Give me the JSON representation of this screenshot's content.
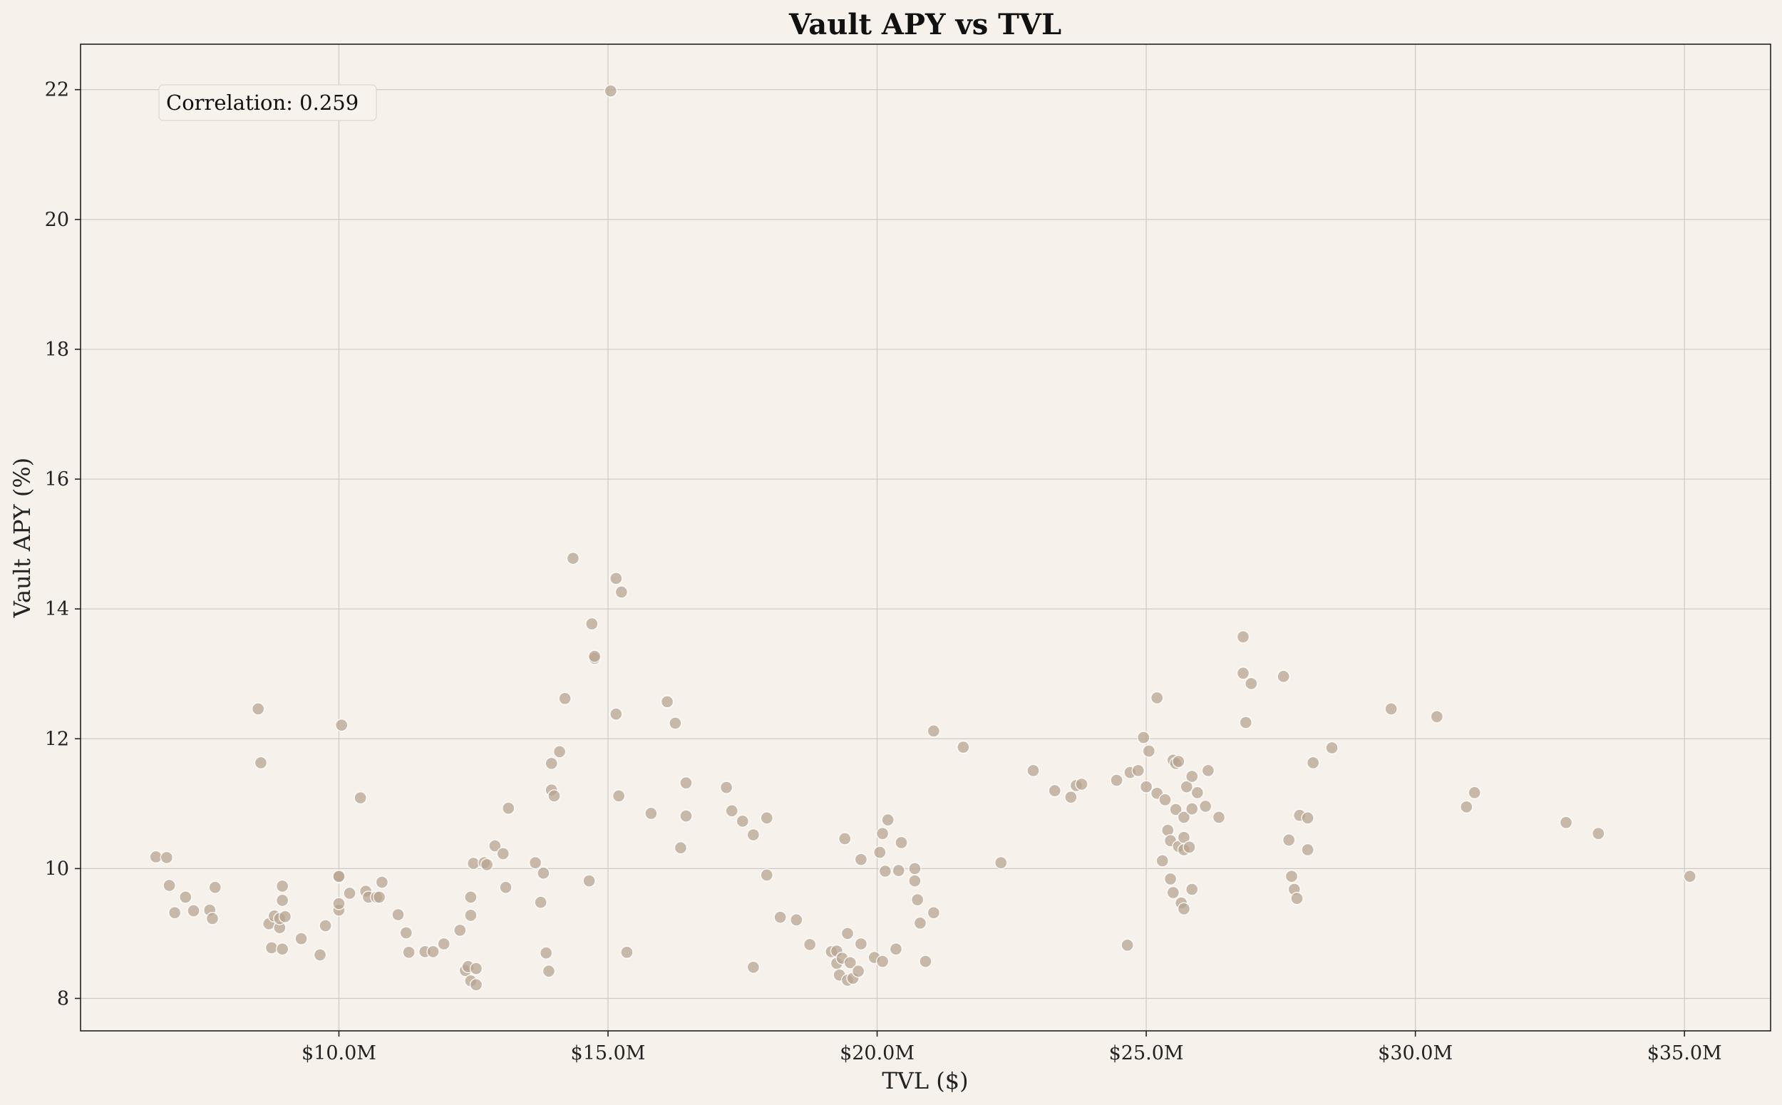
{
  "chart_data": {
    "type": "scatter",
    "title": "Vault APY vs TVL",
    "xlabel": "TVL ($)",
    "ylabel": "Vault APY (%)",
    "xlim": [
      5.2,
      36.6
    ],
    "ylim": [
      7.5,
      22.7
    ],
    "x_ticks": [
      10,
      15,
      20,
      25,
      30,
      35
    ],
    "x_tick_labels": [
      "$10.0M",
      "$15.0M",
      "$20.0M",
      "$25.0M",
      "$30.0M",
      "$35.0M"
    ],
    "y_ticks": [
      8,
      10,
      12,
      14,
      16,
      18,
      20,
      22
    ],
    "y_tick_labels": [
      "8",
      "10",
      "12",
      "14",
      "16",
      "18",
      "20",
      "22"
    ],
    "grid": true,
    "annotation": "Correlation: 0.259",
    "point_color": "#b8a490",
    "points": [
      [
        6.6,
        10.18
      ],
      [
        6.8,
        10.17
      ],
      [
        6.85,
        9.74
      ],
      [
        6.95,
        9.32
      ],
      [
        7.15,
        9.56
      ],
      [
        7.3,
        9.35
      ],
      [
        7.6,
        9.36
      ],
      [
        7.65,
        9.23
      ],
      [
        7.7,
        9.71
      ],
      [
        8.5,
        12.46
      ],
      [
        8.55,
        11.63
      ],
      [
        8.7,
        9.15
      ],
      [
        8.75,
        8.78
      ],
      [
        8.8,
        9.27
      ],
      [
        8.9,
        9.09
      ],
      [
        8.9,
        9.23
      ],
      [
        8.95,
        9.51
      ],
      [
        8.95,
        8.76
      ],
      [
        8.95,
        9.73
      ],
      [
        9.0,
        9.26
      ],
      [
        9.3,
        8.92
      ],
      [
        9.65,
        8.67
      ],
      [
        9.75,
        9.12
      ],
      [
        10.0,
        9.87
      ],
      [
        10.0,
        9.88
      ],
      [
        10.0,
        9.36
      ],
      [
        10.0,
        9.46
      ],
      [
        10.05,
        12.21
      ],
      [
        10.2,
        9.62
      ],
      [
        10.4,
        11.09
      ],
      [
        10.5,
        9.65
      ],
      [
        10.55,
        9.56
      ],
      [
        10.7,
        9.56
      ],
      [
        10.75,
        9.56
      ],
      [
        10.8,
        9.79
      ],
      [
        11.1,
        9.29
      ],
      [
        11.25,
        9.01
      ],
      [
        11.3,
        8.71
      ],
      [
        11.6,
        8.72
      ],
      [
        11.75,
        8.72
      ],
      [
        11.95,
        8.84
      ],
      [
        12.25,
        9.05
      ],
      [
        12.35,
        8.43
      ],
      [
        12.4,
        8.49
      ],
      [
        12.45,
        9.56
      ],
      [
        12.45,
        9.28
      ],
      [
        12.45,
        8.27
      ],
      [
        12.5,
        10.08
      ],
      [
        12.55,
        8.21
      ],
      [
        12.55,
        8.46
      ],
      [
        12.7,
        10.09
      ],
      [
        12.75,
        10.06
      ],
      [
        12.9,
        10.35
      ],
      [
        13.05,
        10.23
      ],
      [
        13.1,
        9.71
      ],
      [
        13.15,
        10.93
      ],
      [
        13.65,
        10.09
      ],
      [
        13.75,
        9.48
      ],
      [
        13.8,
        9.93
      ],
      [
        13.85,
        8.7
      ],
      [
        13.9,
        8.42
      ],
      [
        13.95,
        11.21
      ],
      [
        13.95,
        11.62
      ],
      [
        14.0,
        11.12
      ],
      [
        14.1,
        11.8
      ],
      [
        14.2,
        12.62
      ],
      [
        14.35,
        14.78
      ],
      [
        14.65,
        9.81
      ],
      [
        14.7,
        13.77
      ],
      [
        14.75,
        13.24
      ],
      [
        14.75,
        13.27
      ],
      [
        15.05,
        21.98
      ],
      [
        15.15,
        12.38
      ],
      [
        15.15,
        14.47
      ],
      [
        15.2,
        11.12
      ],
      [
        15.25,
        14.26
      ],
      [
        15.35,
        8.71
      ],
      [
        15.8,
        10.85
      ],
      [
        16.1,
        12.57
      ],
      [
        16.25,
        12.24
      ],
      [
        16.35,
        10.32
      ],
      [
        16.45,
        11.32
      ],
      [
        16.45,
        10.81
      ],
      [
        17.2,
        11.25
      ],
      [
        17.3,
        10.89
      ],
      [
        17.5,
        10.73
      ],
      [
        17.7,
        10.52
      ],
      [
        17.7,
        8.48
      ],
      [
        17.95,
        10.78
      ],
      [
        17.95,
        9.9
      ],
      [
        18.2,
        9.25
      ],
      [
        18.5,
        9.21
      ],
      [
        18.75,
        8.83
      ],
      [
        19.15,
        8.72
      ],
      [
        19.25,
        8.54
      ],
      [
        19.25,
        8.73
      ],
      [
        19.3,
        8.36
      ],
      [
        19.35,
        8.62
      ],
      [
        19.4,
        10.46
      ],
      [
        19.45,
        9.0
      ],
      [
        19.45,
        8.28
      ],
      [
        19.5,
        8.55
      ],
      [
        19.55,
        8.31
      ],
      [
        19.65,
        8.42
      ],
      [
        19.7,
        10.14
      ],
      [
        19.7,
        8.84
      ],
      [
        19.95,
        8.63
      ],
      [
        20.05,
        10.25
      ],
      [
        20.1,
        8.57
      ],
      [
        20.1,
        10.54
      ],
      [
        20.15,
        9.96
      ],
      [
        20.2,
        10.75
      ],
      [
        20.35,
        8.76
      ],
      [
        20.4,
        9.97
      ],
      [
        20.45,
        10.4
      ],
      [
        20.7,
        10.0
      ],
      [
        20.7,
        9.81
      ],
      [
        20.75,
        9.52
      ],
      [
        20.8,
        9.16
      ],
      [
        20.9,
        8.57
      ],
      [
        21.05,
        12.12
      ],
      [
        21.05,
        9.32
      ],
      [
        21.6,
        11.87
      ],
      [
        22.3,
        10.09
      ],
      [
        22.9,
        11.51
      ],
      [
        23.3,
        11.2
      ],
      [
        23.6,
        11.1
      ],
      [
        23.7,
        11.28
      ],
      [
        23.8,
        11.3
      ],
      [
        24.45,
        11.36
      ],
      [
        24.65,
        8.82
      ],
      [
        24.7,
        11.48
      ],
      [
        24.85,
        11.51
      ],
      [
        24.95,
        12.02
      ],
      [
        25.0,
        11.26
      ],
      [
        25.05,
        11.81
      ],
      [
        25.2,
        11.16
      ],
      [
        25.2,
        12.63
      ],
      [
        25.3,
        10.12
      ],
      [
        25.35,
        11.06
      ],
      [
        25.4,
        10.59
      ],
      [
        25.45,
        10.43
      ],
      [
        25.45,
        9.84
      ],
      [
        25.5,
        11.67
      ],
      [
        25.5,
        9.63
      ],
      [
        25.55,
        10.91
      ],
      [
        25.55,
        11.62
      ],
      [
        25.6,
        10.34
      ],
      [
        25.6,
        11.65
      ],
      [
        25.65,
        9.47
      ],
      [
        25.7,
        10.48
      ],
      [
        25.7,
        10.79
      ],
      [
        25.7,
        10.29
      ],
      [
        25.7,
        9.38
      ],
      [
        25.75,
        11.26
      ],
      [
        25.8,
        10.33
      ],
      [
        25.85,
        9.68
      ],
      [
        25.85,
        10.92
      ],
      [
        25.85,
        11.42
      ],
      [
        25.95,
        11.17
      ],
      [
        26.1,
        10.96
      ],
      [
        26.15,
        11.51
      ],
      [
        26.35,
        10.79
      ],
      [
        26.8,
        13.57
      ],
      [
        26.8,
        13.01
      ],
      [
        26.85,
        12.25
      ],
      [
        26.95,
        12.85
      ],
      [
        27.55,
        12.96
      ],
      [
        27.65,
        10.44
      ],
      [
        27.7,
        9.88
      ],
      [
        27.75,
        9.68
      ],
      [
        27.8,
        9.54
      ],
      [
        27.85,
        10.82
      ],
      [
        28.0,
        10.78
      ],
      [
        28.0,
        10.29
      ],
      [
        28.1,
        11.63
      ],
      [
        28.45,
        11.86
      ],
      [
        29.55,
        12.46
      ],
      [
        30.4,
        12.34
      ],
      [
        30.95,
        10.95
      ],
      [
        31.1,
        11.17
      ],
      [
        32.8,
        10.71
      ],
      [
        33.4,
        10.54
      ],
      [
        35.1,
        9.88
      ]
    ]
  }
}
